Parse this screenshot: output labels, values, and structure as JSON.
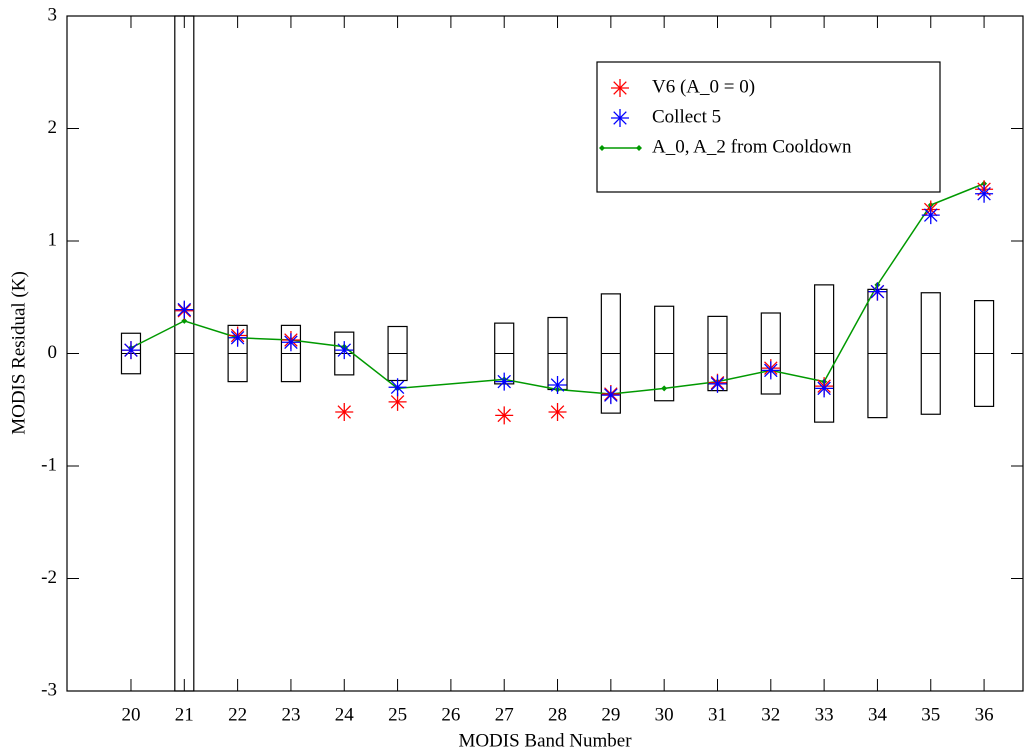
{
  "chart_data": {
    "type": "scatter",
    "x_label": "MODIS Band Number",
    "y_label": "MODIS Residual (K)",
    "x": [
      20,
      21,
      22,
      23,
      24,
      25,
      26,
      27,
      28,
      29,
      30,
      31,
      32,
      33,
      34,
      35,
      36
    ],
    "boxes": [
      0.18,
      3,
      0.25,
      0.25,
      0.19,
      0.24,
      null,
      0.27,
      0.32,
      0.53,
      0.42,
      0.33,
      0.36,
      0.61,
      0.57,
      0.54,
      0.47
    ],
    "series": [
      {
        "name": "V6 (A_0 = 0)",
        "color": "#ff0000",
        "marker": "asterisk",
        "values": [
          0.03,
          0.38,
          0.16,
          0.12,
          -0.52,
          -0.43,
          null,
          -0.55,
          -0.52,
          -0.36,
          null,
          -0.26,
          -0.13,
          -0.29,
          0.55,
          1.28,
          1.46
        ]
      },
      {
        "name": "Collect 5",
        "color": "#0000ff",
        "marker": "asterisk",
        "values": [
          0.03,
          0.39,
          0.14,
          0.1,
          0.03,
          -0.3,
          null,
          -0.25,
          -0.28,
          -0.37,
          null,
          -0.27,
          -0.15,
          -0.31,
          0.55,
          1.23,
          1.42
        ]
      },
      {
        "name": "A_0, A_2 from Cooldown",
        "color": "#009900",
        "marker": "line",
        "x": [
          20,
          21,
          22,
          23,
          24,
          25,
          27,
          28,
          29,
          30,
          31,
          32,
          33,
          34,
          35,
          36
        ],
        "values": [
          0.05,
          0.29,
          0.14,
          0.12,
          0.06,
          -0.31,
          -0.23,
          -0.32,
          -0.36,
          -0.31,
          -0.25,
          -0.15,
          -0.25,
          0.61,
          1.32,
          1.51
        ]
      }
    ],
    "xlim": [
      18.8,
      36.73
    ],
    "xticks": [
      20,
      21,
      22,
      23,
      24,
      25,
      26,
      27,
      28,
      29,
      30,
      31,
      32,
      33,
      34,
      35,
      36
    ],
    "ylim": [
      -3,
      3
    ],
    "yticks": [
      -3,
      -2,
      -1,
      0,
      1,
      2,
      3
    ],
    "legend": "upper right"
  }
}
